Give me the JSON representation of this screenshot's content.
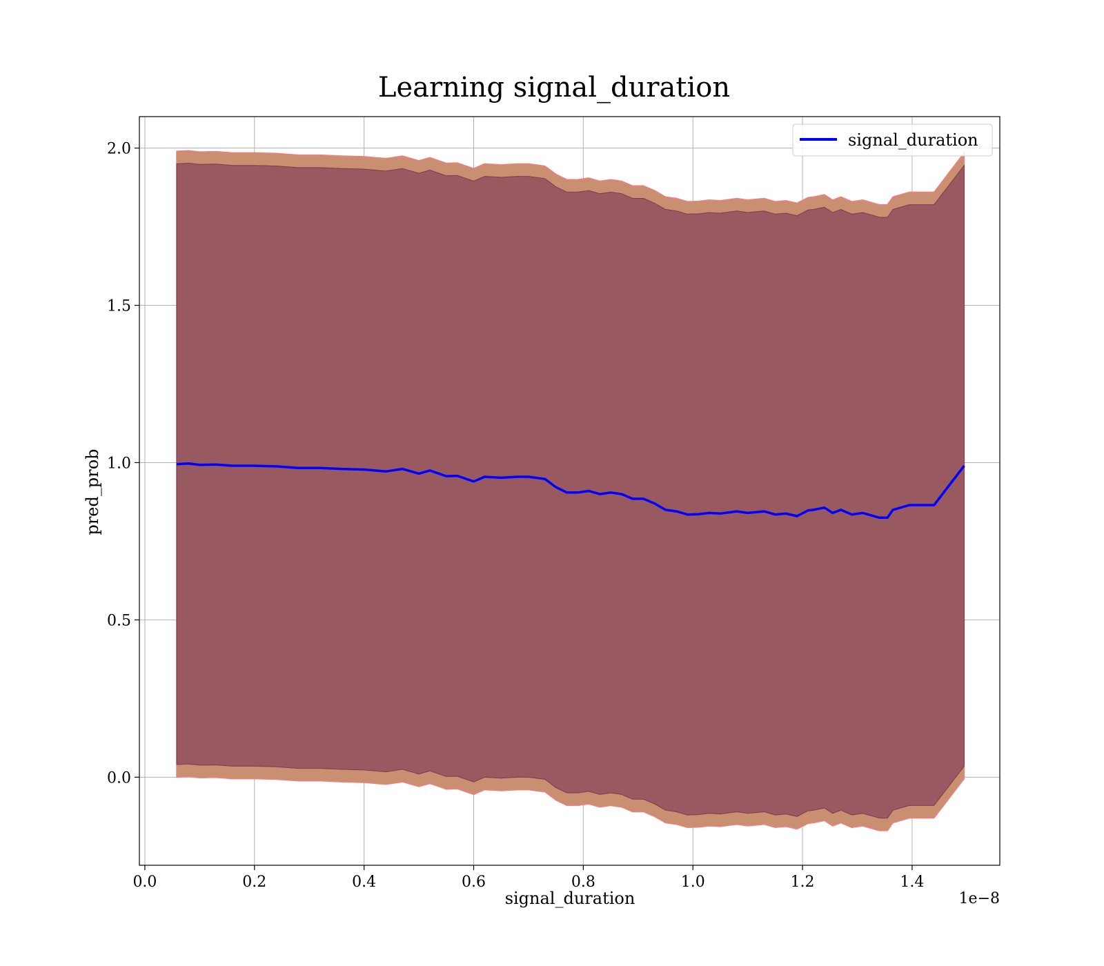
{
  "chart_data": {
    "type": "area",
    "title": "Learning signal_duration",
    "xlabel": "signal_duration",
    "ylabel": "pred_prob",
    "x_offset_label": "1e−8",
    "xlim": [
      -0.01,
      1.56
    ],
    "ylim": [
      -0.28,
      2.1
    ],
    "x_ticks": [
      0.0,
      0.2,
      0.4,
      0.6,
      0.8,
      1.0,
      1.2,
      1.4
    ],
    "x_tick_labels": [
      "0.0",
      "0.2",
      "0.4",
      "0.6",
      "0.8",
      "1.0",
      "1.2",
      "1.4"
    ],
    "y_ticks": [
      0.0,
      0.5,
      1.0,
      1.5,
      2.0
    ],
    "y_tick_labels": [
      "0.0",
      "0.5",
      "1.0",
      "1.5",
      "2.0"
    ],
    "grid": true,
    "legend_position": "top-right",
    "colors": {
      "line": "#0000ff",
      "inner_band": "#8b4a5c",
      "outer_band": "#c88f70",
      "outer_edge": "#f08080",
      "grid": "#b0b0b0"
    },
    "series": [
      {
        "name": "signal_duration",
        "x": [
          0.058,
          0.08,
          0.1,
          0.13,
          0.16,
          0.2,
          0.24,
          0.28,
          0.32,
          0.36,
          0.4,
          0.44,
          0.47,
          0.5,
          0.52,
          0.55,
          0.57,
          0.6,
          0.62,
          0.65,
          0.68,
          0.7,
          0.73,
          0.75,
          0.77,
          0.79,
          0.81,
          0.83,
          0.85,
          0.87,
          0.89,
          0.91,
          0.93,
          0.95,
          0.97,
          0.99,
          1.01,
          1.03,
          1.05,
          1.08,
          1.1,
          1.13,
          1.15,
          1.17,
          1.19,
          1.21,
          1.22,
          1.24,
          1.255,
          1.27,
          1.29,
          1.31,
          1.34,
          1.355,
          1.365,
          1.395,
          1.44,
          1.495
        ],
        "values": [
          0.995,
          0.997,
          0.993,
          0.994,
          0.99,
          0.99,
          0.988,
          0.983,
          0.983,
          0.98,
          0.978,
          0.972,
          0.98,
          0.965,
          0.975,
          0.957,
          0.958,
          0.94,
          0.955,
          0.952,
          0.955,
          0.955,
          0.948,
          0.922,
          0.905,
          0.905,
          0.91,
          0.9,
          0.905,
          0.9,
          0.885,
          0.885,
          0.87,
          0.85,
          0.845,
          0.835,
          0.836,
          0.84,
          0.838,
          0.845,
          0.84,
          0.845,
          0.835,
          0.838,
          0.83,
          0.848,
          0.85,
          0.857,
          0.84,
          0.85,
          0.835,
          0.84,
          0.825,
          0.825,
          0.85,
          0.865,
          0.865,
          0.99
        ],
        "inner_half_width": 0.955,
        "outer_half_width": 0.995
      }
    ]
  }
}
